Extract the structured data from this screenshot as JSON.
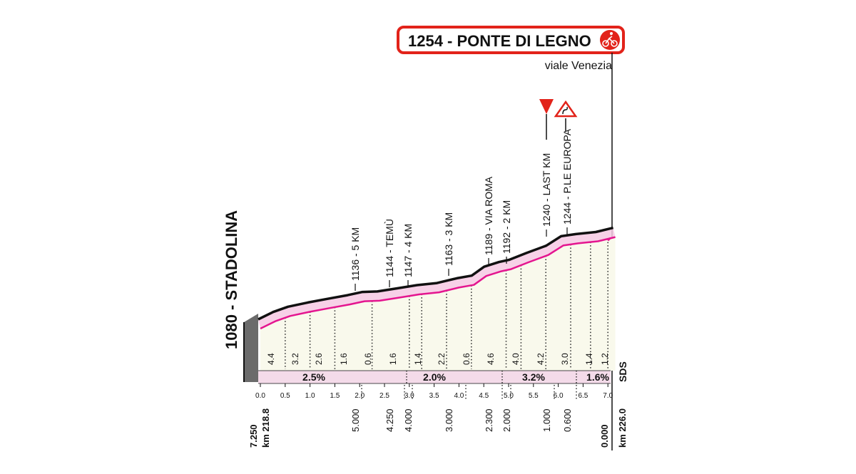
{
  "chart_data": {
    "type": "area",
    "title": "1254 - PONTE DI LEGNO",
    "subtitle": "viale Venezia",
    "start_label": "1080 - STADOLINA",
    "start_km_total": "km 218.8",
    "end_km_total": "km 226.0",
    "start_to_go": "7.250",
    "end_to_go": "0.000",
    "sds_label": "SDS",
    "colors": {
      "profile_line": "#111111",
      "pink_line": "#e4158f",
      "fill_band": "#f6c9e3",
      "fill_area": "#f9f9ec",
      "gradient_band": "#f4dbe9",
      "title_border": "#e2231a",
      "red_triangle": "#e2231a",
      "start_block": "#6b6b6b"
    },
    "x_ticks": [
      "0.0",
      "0.5",
      "1.0",
      "1.5",
      "2.0",
      "2.5",
      "3.0",
      "3.5",
      "4.0",
      "4.5",
      "5.0",
      "5.5",
      "6.0",
      "6.5",
      "7.0"
    ],
    "profile": {
      "x_km": [
        0.0,
        0.3,
        0.6,
        1.0,
        1.4,
        1.8,
        2.1,
        2.4,
        2.8,
        3.2,
        3.6,
        4.0,
        4.3,
        4.55,
        4.85,
        5.05,
        5.4,
        5.8,
        6.1,
        6.4,
        6.8,
        7.15
      ],
      "elevation": [
        1080,
        1094,
        1104,
        1112,
        1119,
        1126,
        1132,
        1133,
        1139,
        1145,
        1149,
        1158,
        1163,
        1180,
        1189,
        1193,
        1206,
        1220,
        1238,
        1242,
        1246,
        1254
      ]
    },
    "gradient_values": [
      "4.4",
      "3.2",
      "2.6",
      "1.6",
      "0.6",
      "1.6",
      "1.4",
      "2.2",
      "0.6",
      "4.6",
      "4.0",
      "4.2",
      "3.0",
      "1.4",
      "1.2"
    ],
    "segments": [
      {
        "label": "2.5%"
      },
      {
        "label": "2.0%"
      },
      {
        "label": "3.2%"
      },
      {
        "label": "1.6%"
      }
    ],
    "annotations": [
      {
        "label": "1136 - 5 KM",
        "km_to_go": "5.000"
      },
      {
        "label": "1144 - TEMÙ",
        "km_to_go": "4.250"
      },
      {
        "label": "1147 - 4 KM",
        "km_to_go": "4.000"
      },
      {
        "label": "1163 - 3 KM",
        "km_to_go": "3.000"
      },
      {
        "label": "1189 - VIA ROMA",
        "km_to_go": "2.300"
      },
      {
        "label": "1192 - 2 KM",
        "km_to_go": "2.000"
      },
      {
        "label": "1240 - LAST KM",
        "km_to_go": "1.000"
      },
      {
        "label": "1244 - P.LE EUROPA",
        "km_to_go": "0.600"
      }
    ]
  }
}
